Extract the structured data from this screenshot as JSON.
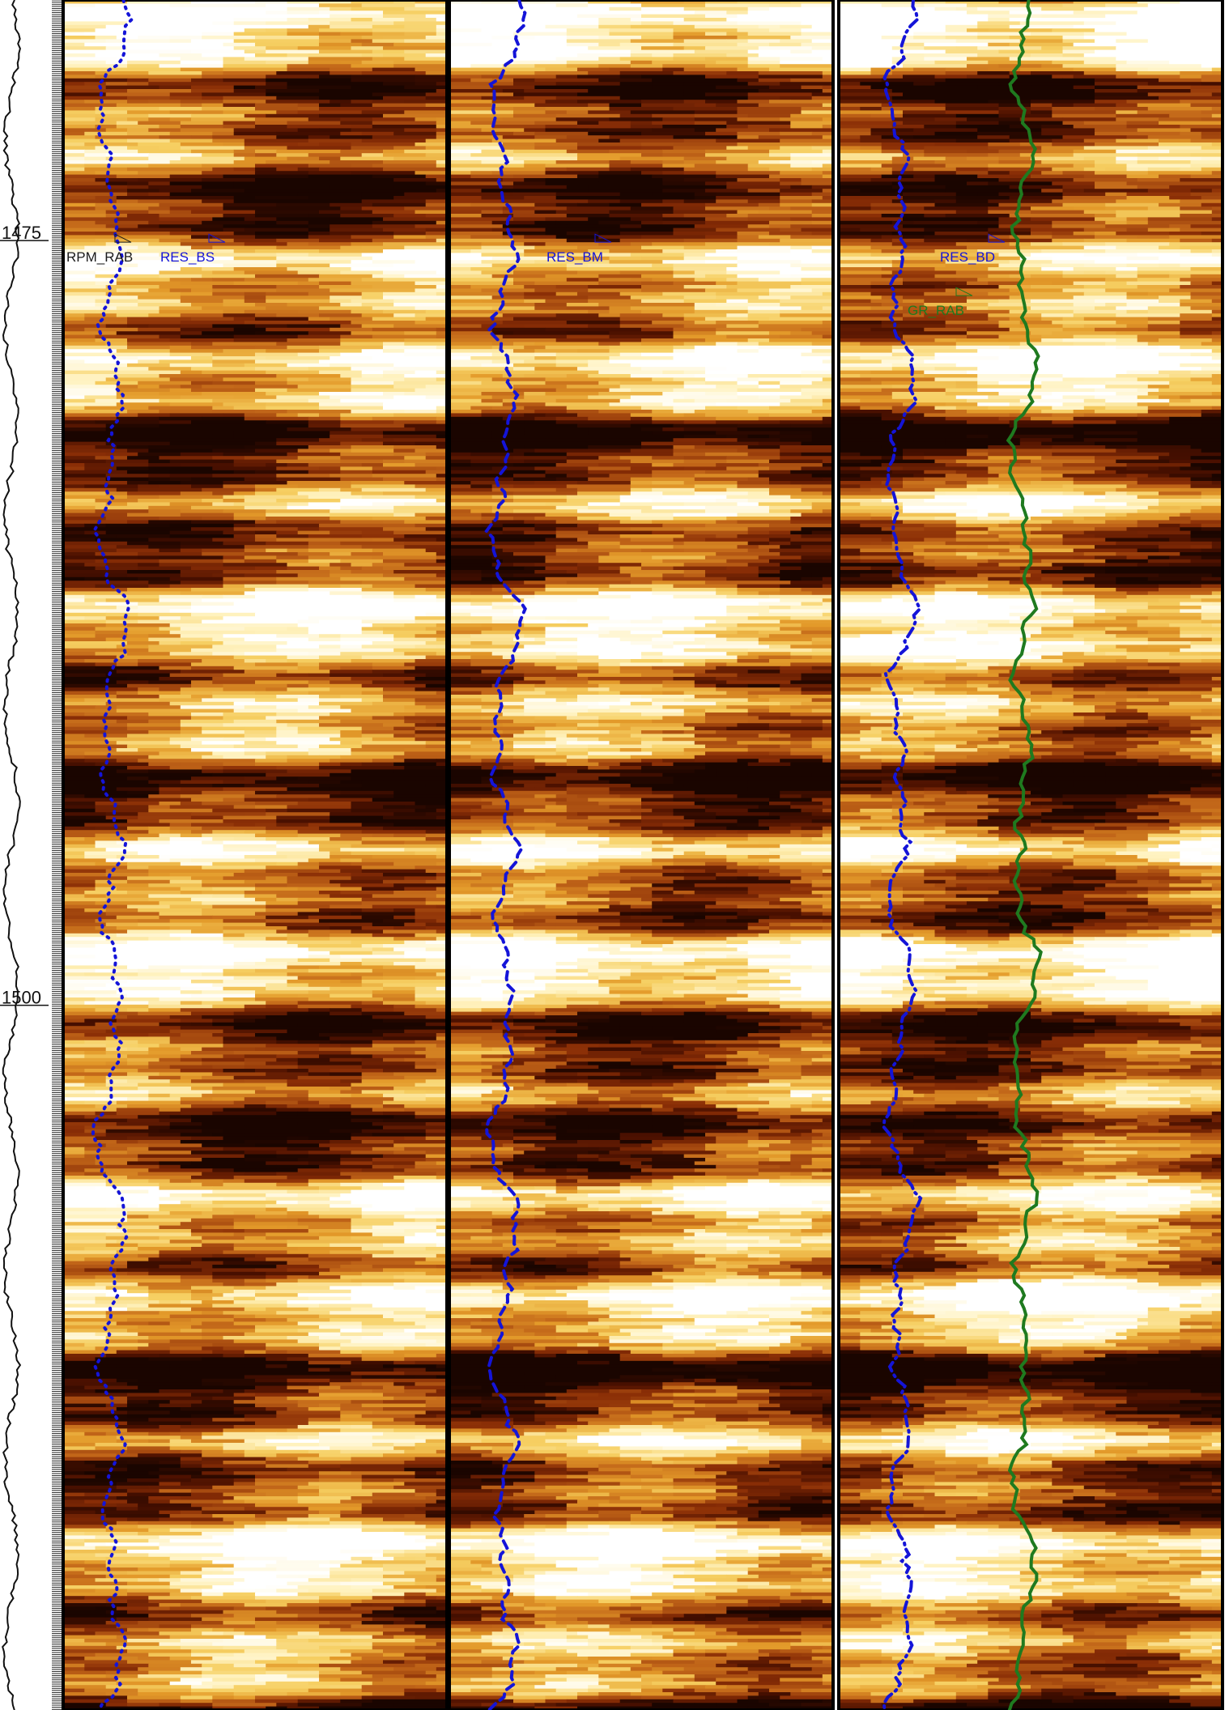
{
  "chart_data": {
    "type": "heatmap",
    "title": "",
    "depth_axis": {
      "ticks": [
        {
          "value": 1475,
          "label": "1475"
        },
        {
          "value": 1500,
          "label": "1500"
        }
      ],
      "range": [
        1467.4,
        1523.3
      ],
      "reference_curve": "unlabelled gamma-style trace in depth track"
    },
    "tracks": [
      {
        "image": "RES_BS",
        "curves": [
          {
            "name": "RPM_RAB",
            "color": "#1a1a1a",
            "style": "leader"
          },
          {
            "name": "RES_BS",
            "color": "#1414d8",
            "style": "dotted"
          }
        ]
      },
      {
        "image": "RES_BM",
        "curves": [
          {
            "name": "RES_BM",
            "color": "#1414d8",
            "style": "dashed"
          }
        ]
      },
      {
        "image": "RES_BD",
        "curves": [
          {
            "name": "RES_BD",
            "color": "#1414d8",
            "style": "dash-dot"
          },
          {
            "name": "GR_RAB",
            "color": "#1f7a1f",
            "style": "solid"
          }
        ]
      }
    ],
    "colormap": [
      "#1a0500",
      "#4a1000",
      "#8a2e06",
      "#c06418",
      "#e39a2a",
      "#f6cf62",
      "#fff2bf",
      "#ffffff"
    ],
    "grid": false,
    "legend": "curve names placed beside curves near depth 1475"
  }
}
